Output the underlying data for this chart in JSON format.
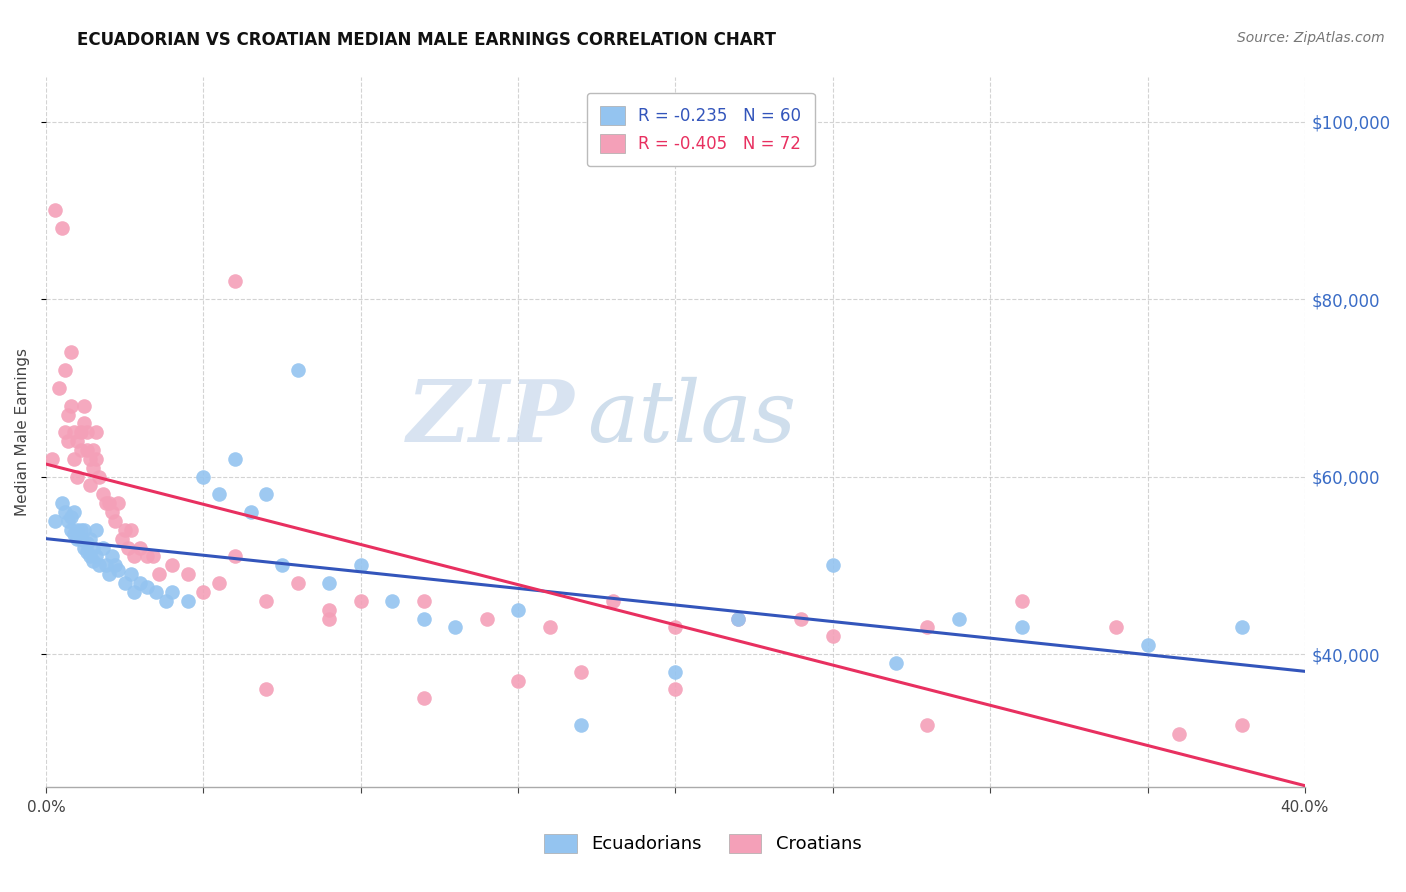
{
  "title": "ECUADORIAN VS CROATIAN MEDIAN MALE EARNINGS CORRELATION CHART",
  "source": "Source: ZipAtlas.com",
  "ylabel": "Median Male Earnings",
  "x_min": 0.0,
  "x_max": 0.4,
  "y_min": 25000,
  "y_max": 105000,
  "yticks": [
    40000,
    60000,
    80000,
    100000
  ],
  "xticks": [
    0.0,
    0.05,
    0.1,
    0.15,
    0.2,
    0.25,
    0.3,
    0.35,
    0.4
  ],
  "ecuadorians_color": "#94C4F0",
  "croatians_color": "#F4A0B8",
  "trend_ecuador_color": "#3355BB",
  "trend_croatia_color": "#E83060",
  "R_ecuador": -0.235,
  "N_ecuador": 60,
  "R_croatia": -0.405,
  "N_croatia": 72,
  "watermark_zip": "ZIP",
  "watermark_atlas": "atlas",
  "background_color": "#FFFFFF",
  "ecuadorians_x": [
    0.003,
    0.005,
    0.006,
    0.007,
    0.008,
    0.008,
    0.009,
    0.009,
    0.01,
    0.01,
    0.011,
    0.011,
    0.012,
    0.012,
    0.013,
    0.013,
    0.014,
    0.014,
    0.015,
    0.015,
    0.016,
    0.016,
    0.017,
    0.018,
    0.019,
    0.02,
    0.021,
    0.022,
    0.023,
    0.025,
    0.027,
    0.028,
    0.03,
    0.032,
    0.035,
    0.038,
    0.04,
    0.045,
    0.05,
    0.055,
    0.06,
    0.065,
    0.07,
    0.075,
    0.08,
    0.09,
    0.1,
    0.11,
    0.12,
    0.13,
    0.15,
    0.17,
    0.2,
    0.22,
    0.25,
    0.27,
    0.29,
    0.31,
    0.35,
    0.38
  ],
  "ecuadorians_y": [
    55000,
    57000,
    56000,
    55000,
    54000,
    55500,
    53500,
    56000,
    54000,
    53000,
    54000,
    53000,
    52000,
    54000,
    51500,
    52500,
    51000,
    53000,
    50500,
    52000,
    51000,
    54000,
    50000,
    52000,
    50000,
    49000,
    51000,
    50000,
    49500,
    48000,
    49000,
    47000,
    48000,
    47500,
    47000,
    46000,
    47000,
    46000,
    60000,
    58000,
    62000,
    56000,
    58000,
    50000,
    72000,
    48000,
    50000,
    46000,
    44000,
    43000,
    45000,
    32000,
    38000,
    44000,
    50000,
    39000,
    44000,
    43000,
    41000,
    43000
  ],
  "croatians_x": [
    0.002,
    0.003,
    0.004,
    0.005,
    0.006,
    0.006,
    0.007,
    0.007,
    0.008,
    0.008,
    0.009,
    0.009,
    0.01,
    0.01,
    0.011,
    0.011,
    0.012,
    0.012,
    0.013,
    0.013,
    0.014,
    0.014,
    0.015,
    0.015,
    0.016,
    0.016,
    0.017,
    0.018,
    0.019,
    0.02,
    0.021,
    0.022,
    0.023,
    0.024,
    0.025,
    0.026,
    0.027,
    0.028,
    0.03,
    0.032,
    0.034,
    0.036,
    0.04,
    0.045,
    0.05,
    0.055,
    0.06,
    0.07,
    0.08,
    0.09,
    0.1,
    0.12,
    0.14,
    0.16,
    0.18,
    0.2,
    0.22,
    0.25,
    0.28,
    0.31,
    0.12,
    0.15,
    0.17,
    0.2,
    0.24,
    0.28,
    0.34,
    0.36,
    0.38,
    0.06,
    0.07,
    0.09
  ],
  "croatians_y": [
    62000,
    90000,
    70000,
    88000,
    72000,
    65000,
    67000,
    64000,
    68000,
    74000,
    65000,
    62000,
    64000,
    60000,
    65000,
    63000,
    68000,
    66000,
    65000,
    63000,
    62000,
    59000,
    61000,
    63000,
    65000,
    62000,
    60000,
    58000,
    57000,
    57000,
    56000,
    55000,
    57000,
    53000,
    54000,
    52000,
    54000,
    51000,
    52000,
    51000,
    51000,
    49000,
    50000,
    49000,
    47000,
    48000,
    82000,
    46000,
    48000,
    45000,
    46000,
    46000,
    44000,
    43000,
    46000,
    43000,
    44000,
    42000,
    32000,
    46000,
    35000,
    37000,
    38000,
    36000,
    44000,
    43000,
    43000,
    31000,
    32000,
    51000,
    36000,
    44000
  ]
}
